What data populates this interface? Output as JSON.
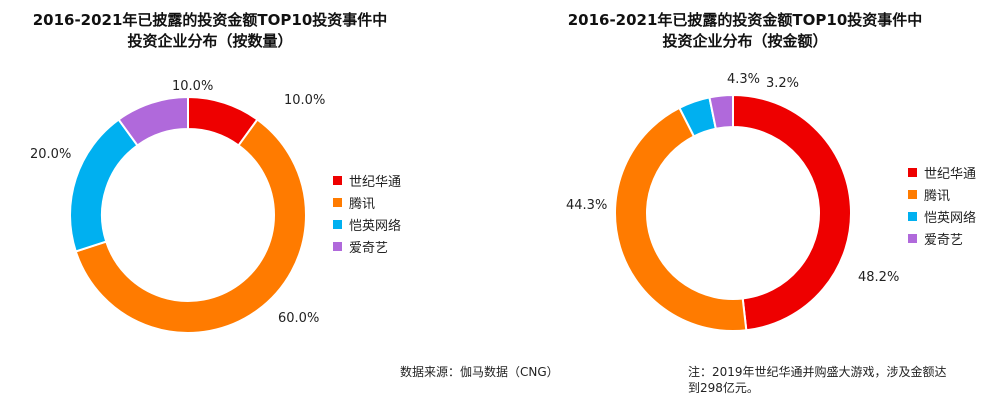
{
  "chart_data": [
    {
      "type": "pie",
      "style": "donut",
      "title": "2016-2021年已披露的投资金额TOP10投资事件中\n投资企业分布（按数量）",
      "title_lines": [
        "2016-2021年已披露的投资金额TOP10投资事件中",
        "投资企业分布（按数量）"
      ],
      "categories": [
        "世纪华通",
        "腾讯",
        "恺英网络",
        "爱奇艺"
      ],
      "values": [
        10.0,
        60.0,
        20.0,
        10.0
      ],
      "labels": [
        "10.0%",
        "60.0%",
        "20.0%",
        "10.0%"
      ],
      "colors": [
        "#ee0000",
        "#ff7b00",
        "#00b0f0",
        "#b069db"
      ],
      "legend": "right"
    },
    {
      "type": "pie",
      "style": "donut",
      "title": "2016-2021年已披露的投资金额TOP10投资事件中\n投资企业分布（按金额）",
      "title_lines": [
        "2016-2021年已披露的投资金额TOP10投资事件中",
        "投资企业分布（按金额）"
      ],
      "categories": [
        "世纪华通",
        "腾讯",
        "恺英网络",
        "爱奇艺"
      ],
      "values": [
        48.2,
        44.3,
        4.3,
        3.2
      ],
      "labels": [
        "48.2%",
        "44.3%",
        "4.3%",
        "3.2%"
      ],
      "colors": [
        "#ee0000",
        "#ff7b00",
        "#00b0f0",
        "#b069db"
      ],
      "legend": "right"
    }
  ],
  "footer": {
    "source": "数据来源：伽马数据（CNG）",
    "note": "注：2019年世纪华通并购盛大游戏，涉及金额达到298亿元。"
  }
}
